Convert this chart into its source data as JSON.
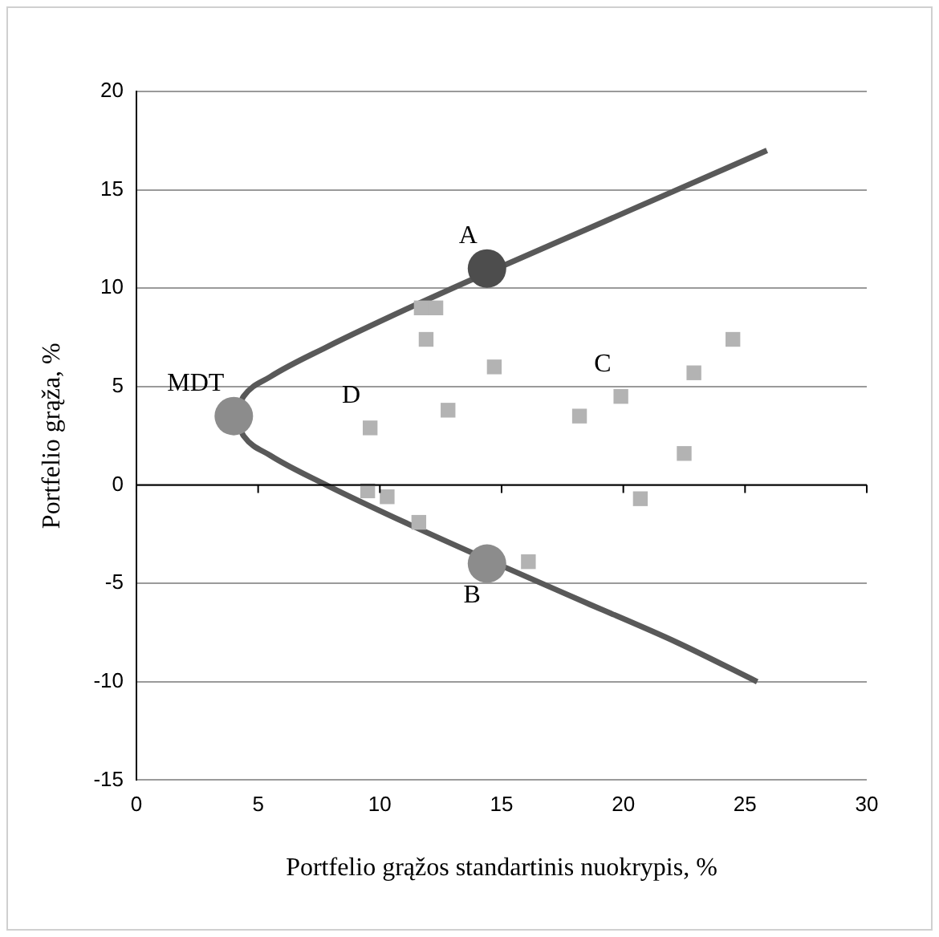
{
  "chart_data": {
    "type": "scatter",
    "xlabel": "Portfelio grąžos standartinis nuokrypis, %",
    "ylabel": "Portfelio grąža, %",
    "xlim": [
      0,
      30
    ],
    "xticks": [
      0,
      5,
      10,
      15,
      20,
      25,
      30
    ],
    "ylim": [
      -15,
      20
    ],
    "yticks": [
      -15,
      -10,
      -5,
      0,
      5,
      10,
      15,
      20
    ],
    "grid": "y",
    "legend": false,
    "series": [
      {
        "type": "line",
        "color": "#595959",
        "marker": "none",
        "x": [
          25.9,
          22.2,
          18.5,
          14.8,
          11.2,
          7.8,
          5.5,
          4.4,
          4.0,
          4.4,
          5.5,
          7.8,
          11.2,
          14.8,
          18.5,
          22.2,
          25.5
        ],
        "values": [
          17,
          15,
          13,
          11,
          9,
          7,
          5.5,
          4.5,
          3.5,
          2.5,
          1.5,
          0,
          -2,
          -4,
          -6,
          -8,
          -10
        ]
      },
      {
        "type": "scatter",
        "color": "#b3b3b3",
        "marker": "square",
        "x": [
          9.6,
          11.7,
          12.3,
          11.9,
          14.7,
          12.8,
          9.5,
          10.3,
          11.6,
          16.1,
          18.2,
          19.9,
          22.9,
          24.5,
          22.5,
          20.7
        ],
        "values": [
          2.9,
          9.0,
          9.0,
          7.4,
          6.0,
          3.8,
          -0.3,
          -0.6,
          -1.9,
          -3.9,
          3.5,
          4.5,
          5.7,
          7.4,
          1.6,
          -0.7
        ]
      },
      {
        "type": "scatter",
        "color": "#4d4d4d",
        "marker": "circle",
        "x": [
          14.4
        ],
        "values": [
          11.0
        ]
      },
      {
        "type": "scatter",
        "color": "#8c8c8c",
        "marker": "circle",
        "x": [
          4.0,
          14.4
        ],
        "values": [
          3.5,
          -4.0
        ]
      }
    ],
    "annotations": [
      {
        "text": "A",
        "x": 14.4,
        "y": 11.0
      },
      {
        "text": "MDT",
        "x": 4.0,
        "y": 3.5
      },
      {
        "text": "D",
        "x": 9.6,
        "y": 2.9
      },
      {
        "text": "C",
        "x": 19.9,
        "y": 4.5
      },
      {
        "text": "B",
        "x": 14.4,
        "y": -4.0
      }
    ]
  }
}
